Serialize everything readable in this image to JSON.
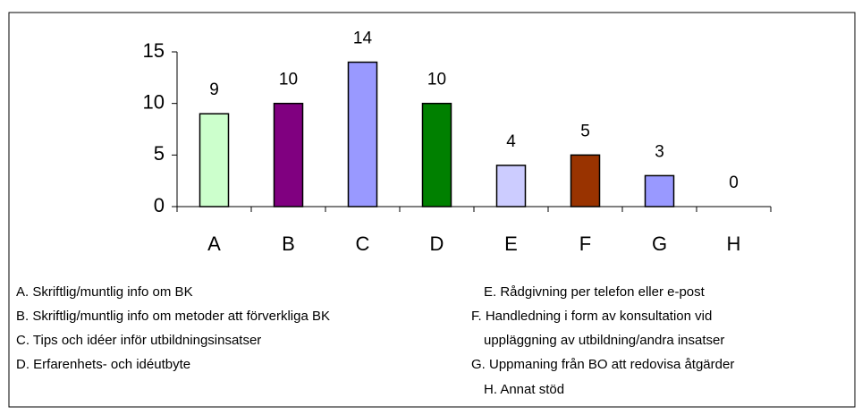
{
  "chart_data": {
    "type": "bar",
    "categories": [
      "A",
      "B",
      "C",
      "D",
      "E",
      "F",
      "G",
      "H"
    ],
    "values": [
      9,
      10,
      14,
      10,
      4,
      5,
      3,
      0
    ],
    "colors": [
      "#ccffcc",
      "#800080",
      "#9999ff",
      "#008000",
      "#ccccff",
      "#993300",
      "#9999ff",
      "#9999ff"
    ],
    "ylim": [
      0,
      15
    ],
    "yticks": [
      0,
      5,
      10,
      15
    ],
    "grid": false,
    "legend_left": [
      "A. Skriftlig/muntlig info om BK",
      "B. Skriftlig/muntlig info om metoder att förverkliga BK",
      "C. Tips och idéer inför utbildningsinsatser",
      "D. Erfarenhets- och idéutbyte"
    ],
    "legend_right": [
      [
        "E. Rådgivning per telefon eller e-post"
      ],
      [
        "F.  Handledning i form av konsultation vid",
        "uppläggning av utbildning/andra insatser"
      ],
      [
        "G. Uppmaning från BO att redovisa åtgärder"
      ],
      [
        "H. Annat stöd"
      ]
    ]
  }
}
